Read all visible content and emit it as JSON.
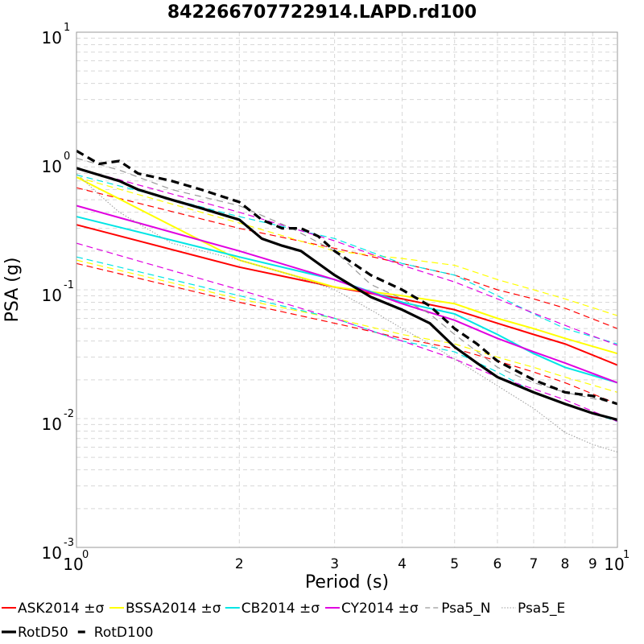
{
  "chart_data": {
    "type": "line",
    "title": "842266707722914.LAPD.rd100",
    "xlabel": "Period (s)",
    "ylabel": "PSA (g)",
    "xscale": "log",
    "yscale": "log",
    "xlim": [
      1,
      10
    ],
    "ylim": [
      0.001,
      10
    ],
    "grid": true,
    "legend_position": "bottom",
    "x_major_ticks": [
      {
        "value": 1,
        "base": "10",
        "exp": "0"
      },
      {
        "value": 10,
        "base": "10",
        "exp": "1"
      }
    ],
    "x_minor_ticks": [
      {
        "value": 2,
        "label": "2"
      },
      {
        "value": 3,
        "label": "3"
      },
      {
        "value": 4,
        "label": "4"
      },
      {
        "value": 5,
        "label": "5"
      },
      {
        "value": 6,
        "label": "6"
      },
      {
        "value": 7,
        "label": "7"
      },
      {
        "value": 8,
        "label": "8"
      },
      {
        "value": 9,
        "label": "9"
      }
    ],
    "y_major_ticks": [
      {
        "value": 0.001,
        "base": "10",
        "exp": "-3"
      },
      {
        "value": 0.01,
        "base": "10",
        "exp": "-2"
      },
      {
        "value": 0.1,
        "base": "10",
        "exp": "-1"
      },
      {
        "value": 1,
        "base": "10",
        "exp": "0"
      },
      {
        "value": 10,
        "base": "10",
        "exp": "1"
      }
    ],
    "legend": [
      {
        "label": "ASK2014 ±σ",
        "color": "#ff0000",
        "style": "solid"
      },
      {
        "label": "BSSA2014 ±σ",
        "color": "#ffff00",
        "style": "solid"
      },
      {
        "label": "CB2014 ±σ",
        "color": "#00e5e5",
        "style": "solid"
      },
      {
        "label": "CY2014 ±σ",
        "color": "#e000e0",
        "style": "solid"
      },
      {
        "label": "Psa5_N",
        "color": "#999999",
        "style": "dashed"
      },
      {
        "label": "Psa5_E",
        "color": "#999999",
        "style": "dotted"
      },
      {
        "label": "RotD50",
        "color": "#000000",
        "style": "thick-solid"
      },
      {
        "label": "RotD100",
        "color": "#000000",
        "style": "thick-dashed"
      }
    ],
    "series": [
      {
        "name": "ASK2014",
        "color": "#ff0000",
        "width": 2,
        "dash": "",
        "x": [
          1,
          2,
          3,
          4,
          5,
          6,
          7,
          8,
          10
        ],
        "y": [
          0.32,
          0.15,
          0.105,
          0.085,
          0.07,
          0.055,
          0.045,
          0.038,
          0.026
        ]
      },
      {
        "color": "#ff0000",
        "width": 1.2,
        "dash": "8,5",
        "x": [
          1,
          2,
          3,
          4,
          5,
          6,
          7,
          8,
          10
        ],
        "y": [
          0.62,
          0.3,
          0.21,
          0.16,
          0.13,
          0.1,
          0.085,
          0.072,
          0.05
        ]
      },
      {
        "color": "#ff0000",
        "width": 1.2,
        "dash": "8,5",
        "x": [
          1,
          2,
          3,
          4,
          5,
          6,
          7,
          8,
          10
        ],
        "y": [
          0.16,
          0.08,
          0.055,
          0.042,
          0.035,
          0.028,
          0.023,
          0.019,
          0.013
        ]
      },
      {
        "name": "BSSA2014",
        "color": "#ffff00",
        "width": 2,
        "dash": "",
        "x": [
          1,
          2,
          3,
          4,
          5,
          6,
          7,
          8,
          10
        ],
        "y": [
          0.75,
          0.17,
          0.105,
          0.09,
          0.078,
          0.06,
          0.05,
          0.042,
          0.032
        ]
      },
      {
        "color": "#ffff00",
        "width": 1.2,
        "dash": "8,5",
        "x": [
          1,
          2,
          3,
          4,
          5,
          6,
          7,
          8,
          10
        ],
        "y": [
          0.75,
          0.33,
          0.2,
          0.175,
          0.155,
          0.12,
          0.1,
          0.085,
          0.063
        ]
      },
      {
        "color": "#ffff00",
        "width": 1.2,
        "dash": "8,5",
        "x": [
          1,
          2,
          3,
          4,
          5,
          6,
          7,
          8,
          10
        ],
        "y": [
          0.17,
          0.085,
          0.06,
          0.045,
          0.038,
          0.03,
          0.025,
          0.021,
          0.016
        ]
      },
      {
        "name": "CB2014",
        "color": "#00e5e5",
        "width": 2,
        "dash": "",
        "x": [
          1,
          2,
          3,
          4,
          5,
          6,
          7,
          8,
          10
        ],
        "y": [
          0.37,
          0.18,
          0.12,
          0.08,
          0.065,
          0.045,
          0.032,
          0.025,
          0.019
        ]
      },
      {
        "color": "#00e5e5",
        "width": 1.2,
        "dash": "8,5",
        "x": [
          1,
          2,
          3,
          4,
          5,
          6,
          7,
          8,
          10
        ],
        "y": [
          0.78,
          0.37,
          0.25,
          0.16,
          0.13,
          0.09,
          0.065,
          0.05,
          0.038
        ]
      },
      {
        "color": "#00e5e5",
        "width": 1.2,
        "dash": "8,5",
        "x": [
          1,
          2,
          3,
          4,
          5,
          6,
          7,
          8,
          10
        ],
        "y": [
          0.18,
          0.09,
          0.06,
          0.04,
          0.033,
          0.023,
          0.016,
          0.013,
          0.0095
        ]
      },
      {
        "name": "CY2014",
        "color": "#e000e0",
        "width": 2,
        "dash": "",
        "x": [
          1,
          2,
          3,
          4,
          5,
          6,
          7,
          8,
          10
        ],
        "y": [
          0.45,
          0.2,
          0.12,
          0.078,
          0.058,
          0.042,
          0.033,
          0.027,
          0.019
        ]
      },
      {
        "color": "#e000e0",
        "width": 1.2,
        "dash": "8,5",
        "x": [
          1,
          2,
          3,
          4,
          5,
          6,
          7,
          8,
          10
        ],
        "y": [
          0.88,
          0.4,
          0.24,
          0.155,
          0.115,
          0.085,
          0.066,
          0.053,
          0.037
        ]
      },
      {
        "color": "#e000e0",
        "width": 1.2,
        "dash": "8,5",
        "x": [
          1,
          2,
          3,
          4,
          5,
          6,
          7,
          8,
          10
        ],
        "y": [
          0.23,
          0.1,
          0.06,
          0.04,
          0.029,
          0.021,
          0.017,
          0.014,
          0.0095
        ]
      },
      {
        "name": "Psa5_N",
        "color": "#999999",
        "width": 1.2,
        "dash": "8,6",
        "x": [
          1,
          1.2,
          1.5,
          2,
          2.5,
          3,
          3.5,
          4,
          4.5,
          5,
          6,
          7,
          8,
          10
        ],
        "y": [
          1.05,
          0.85,
          0.6,
          0.45,
          0.3,
          0.2,
          0.11,
          0.085,
          0.065,
          0.045,
          0.025,
          0.019,
          0.016,
          0.013
        ]
      },
      {
        "name": "Psa5_E",
        "color": "#999999",
        "width": 1,
        "dash": "1.5,2",
        "x": [
          1,
          1.1,
          1.2,
          1.5,
          2,
          2.5,
          3,
          3.5,
          4,
          4.5,
          5,
          6,
          7,
          8,
          9,
          10
        ],
        "y": [
          0.8,
          0.55,
          0.4,
          0.23,
          0.17,
          0.13,
          0.1,
          0.07,
          0.05,
          0.038,
          0.029,
          0.018,
          0.012,
          0.0078,
          0.0063,
          0.0055
        ]
      },
      {
        "name": "RotD50",
        "color": "#000000",
        "width": 3.2,
        "dash": "",
        "x": [
          1,
          1.1,
          1.2,
          1.3,
          1.5,
          1.7,
          2,
          2.2,
          2.4,
          2.6,
          3,
          3.5,
          4,
          4.5,
          5,
          5.5,
          6,
          7,
          8,
          9,
          10
        ],
        "y": [
          0.88,
          0.78,
          0.7,
          0.6,
          0.5,
          0.43,
          0.35,
          0.25,
          0.22,
          0.2,
          0.13,
          0.088,
          0.07,
          0.055,
          0.036,
          0.027,
          0.021,
          0.016,
          0.013,
          0.011,
          0.0098
        ]
      },
      {
        "name": "RotD100",
        "color": "#000000",
        "width": 3.2,
        "dash": "10,6",
        "x": [
          1,
          1.1,
          1.2,
          1.3,
          1.5,
          1.7,
          2,
          2.2,
          2.4,
          2.6,
          2.8,
          3,
          3.5,
          4,
          4.5,
          5,
          5.5,
          6,
          7,
          8,
          9,
          10
        ],
        "y": [
          1.2,
          0.95,
          1.0,
          0.8,
          0.7,
          0.6,
          0.48,
          0.35,
          0.3,
          0.3,
          0.26,
          0.2,
          0.13,
          0.1,
          0.075,
          0.05,
          0.038,
          0.028,
          0.02,
          0.016,
          0.015,
          0.013
        ]
      }
    ]
  }
}
